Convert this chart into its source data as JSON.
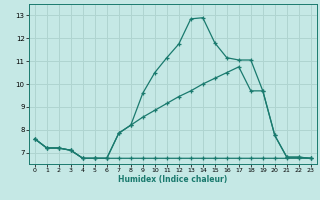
{
  "xlabel": "Humidex (Indice chaleur)",
  "xlim": [
    -0.5,
    23.5
  ],
  "ylim": [
    6.5,
    13.5
  ],
  "yticks": [
    7,
    8,
    9,
    10,
    11,
    12,
    13
  ],
  "xticks": [
    0,
    1,
    2,
    3,
    4,
    5,
    6,
    7,
    8,
    9,
    10,
    11,
    12,
    13,
    14,
    15,
    16,
    17,
    18,
    19,
    20,
    21,
    22,
    23
  ],
  "background_color": "#c5e8e5",
  "grid_color": "#afd4d0",
  "line_color": "#1a7a6e",
  "curve1_x": [
    0,
    1,
    2,
    3,
    4,
    5,
    6,
    7,
    8,
    9,
    10,
    11,
    12,
    13,
    14,
    15,
    16,
    17,
    18,
    19,
    20,
    21,
    22,
    23
  ],
  "curve1_y": [
    7.6,
    7.2,
    7.2,
    7.1,
    6.75,
    6.75,
    6.75,
    7.85,
    8.2,
    9.6,
    10.5,
    11.15,
    11.75,
    12.85,
    12.9,
    11.8,
    11.15,
    11.05,
    11.05,
    9.7,
    7.75,
    6.8,
    6.8,
    6.75
  ],
  "curve2_x": [
    0,
    1,
    2,
    3,
    4,
    5,
    6,
    7,
    8,
    9,
    10,
    11,
    12,
    13,
    14,
    15,
    16,
    17,
    18,
    19,
    20,
    21,
    22,
    23
  ],
  "curve2_y": [
    7.6,
    7.2,
    7.2,
    7.1,
    6.75,
    6.75,
    6.75,
    6.75,
    6.75,
    6.75,
    6.75,
    6.75,
    6.75,
    6.75,
    6.75,
    6.75,
    6.75,
    6.75,
    6.75,
    6.75,
    6.75,
    6.75,
    6.75,
    6.75
  ],
  "curve3_x": [
    0,
    1,
    2,
    3,
    4,
    5,
    6,
    7,
    8,
    9,
    10,
    11,
    12,
    13,
    14,
    15,
    16,
    17,
    18,
    19,
    20,
    21,
    22,
    23
  ],
  "curve3_y": [
    7.6,
    7.2,
    7.2,
    7.1,
    6.75,
    6.75,
    6.75,
    7.85,
    8.2,
    8.55,
    8.85,
    9.15,
    9.45,
    9.7,
    10.0,
    10.25,
    10.5,
    10.75,
    9.7,
    9.7,
    7.75,
    6.8,
    6.8,
    6.75
  ]
}
